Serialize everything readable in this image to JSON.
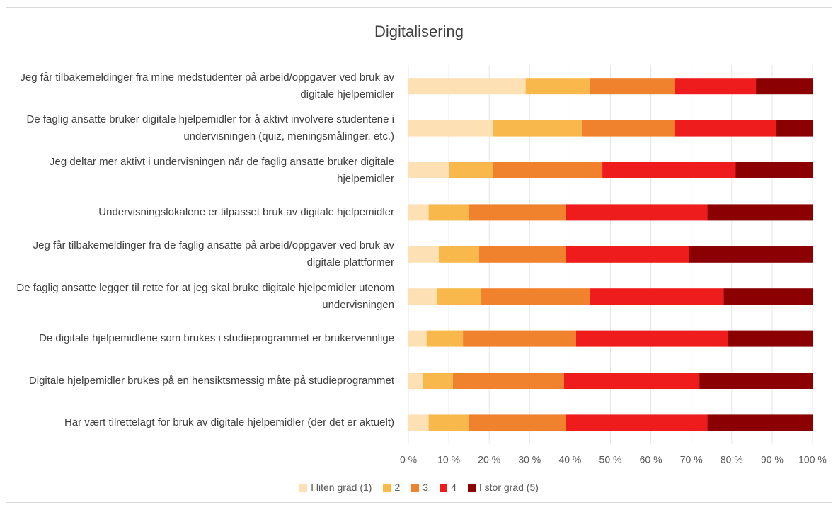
{
  "chart_data": {
    "type": "stacked_barh",
    "title": "Digitalisering",
    "categories": [
      "Jeg får tilbakemeldinger fra mine medstudenter på arbeid/oppgaver ved bruk av digitale hjelpemidler",
      "De faglig ansatte bruker digitale hjelpemidler for å aktivt involvere studentene i undervisningen (quiz, meningsmålinger, etc.)",
      "Jeg deltar mer aktivt i undervisningen når de faglig ansatte bruker digitale hjelpemidler",
      "Undervisningslokalene er tilpasset bruk av digitale hjelpemidler",
      "Jeg får tilbakemeldinger fra de faglig ansatte på arbeid/oppgaver ved bruk av digitale plattformer",
      "De faglig ansatte legger til rette for at jeg skal bruke digitale hjelpemidler utenom undervisningen",
      "De digitale hjelpemidlene som brukes i studieprogrammet er brukervennlige",
      "Digitale hjelpemidler brukes på en hensiktsmessig måte på studieprogrammet",
      "Har vært tilrettelagt for bruk av digitale hjelpemidler (der det er aktuelt)"
    ],
    "series": [
      {
        "name": "I liten grad (1)",
        "color": "#fde1b4",
        "values": [
          29,
          21,
          10,
          5,
          7.5,
          7,
          4.5,
          3.5,
          5
        ]
      },
      {
        "name": "2",
        "color": "#f9b84b",
        "values": [
          16,
          22,
          11,
          10,
          10,
          11,
          9,
          7.5,
          10
        ]
      },
      {
        "name": "3",
        "color": "#f0822d",
        "values": [
          21,
          23,
          27,
          24,
          21.5,
          27,
          28,
          27.5,
          24
        ]
      },
      {
        "name": "4",
        "color": "#ee1c1c",
        "values": [
          20,
          25,
          33,
          35,
          30.5,
          33,
          37.5,
          33.5,
          35
        ]
      },
      {
        "name": "I stor grad (5)",
        "color": "#8b0000",
        "values": [
          14,
          9,
          19,
          26,
          30.5,
          22,
          21,
          28,
          26
        ]
      }
    ],
    "xlim": [
      0,
      100
    ],
    "xticks": [
      {
        "value": 0,
        "label": "0 %"
      },
      {
        "value": 10,
        "label": "10 %"
      },
      {
        "value": 20,
        "label": "20 %"
      },
      {
        "value": 30,
        "label": "30 %"
      },
      {
        "value": 40,
        "label": "40 %"
      },
      {
        "value": 50,
        "label": "50 %"
      },
      {
        "value": 60,
        "label": "60 %"
      },
      {
        "value": 70,
        "label": "70 %"
      },
      {
        "value": 80,
        "label": "80 %"
      },
      {
        "value": 90,
        "label": "90 %"
      },
      {
        "value": 100,
        "label": "100 %"
      }
    ]
  }
}
